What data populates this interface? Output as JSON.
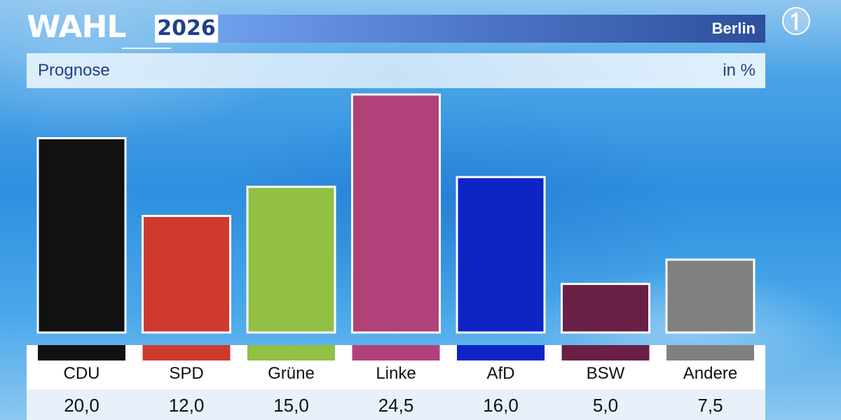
{
  "header": {
    "logo_word": "WAHL",
    "year": "2026",
    "region": "Berlin"
  },
  "subheader": {
    "label": "Prognose",
    "unit": "in %"
  },
  "colors": {
    "title_bar": "#3f64b6",
    "text_blue": "#1f3f88"
  },
  "chart_data": {
    "type": "bar",
    "title": "Prognose",
    "ylabel": "in %",
    "ylim": [
      0,
      25
    ],
    "grid": false,
    "categories": [
      "CDU",
      "SPD",
      "Grüne",
      "Linke",
      "AfD",
      "BSW",
      "Andere"
    ],
    "values": [
      "20,0",
      "12,0",
      "15,0",
      "24,5",
      "16,0",
      "5,0",
      "7,5"
    ],
    "numeric_values": [
      20.0,
      12.0,
      15.0,
      24.5,
      16.0,
      5.0,
      7.5
    ],
    "bar_colors": [
      "#111111",
      "#cf3a2e",
      "#92c044",
      "#b04279",
      "#0f24c5",
      "#6a1f46",
      "#808080"
    ]
  }
}
